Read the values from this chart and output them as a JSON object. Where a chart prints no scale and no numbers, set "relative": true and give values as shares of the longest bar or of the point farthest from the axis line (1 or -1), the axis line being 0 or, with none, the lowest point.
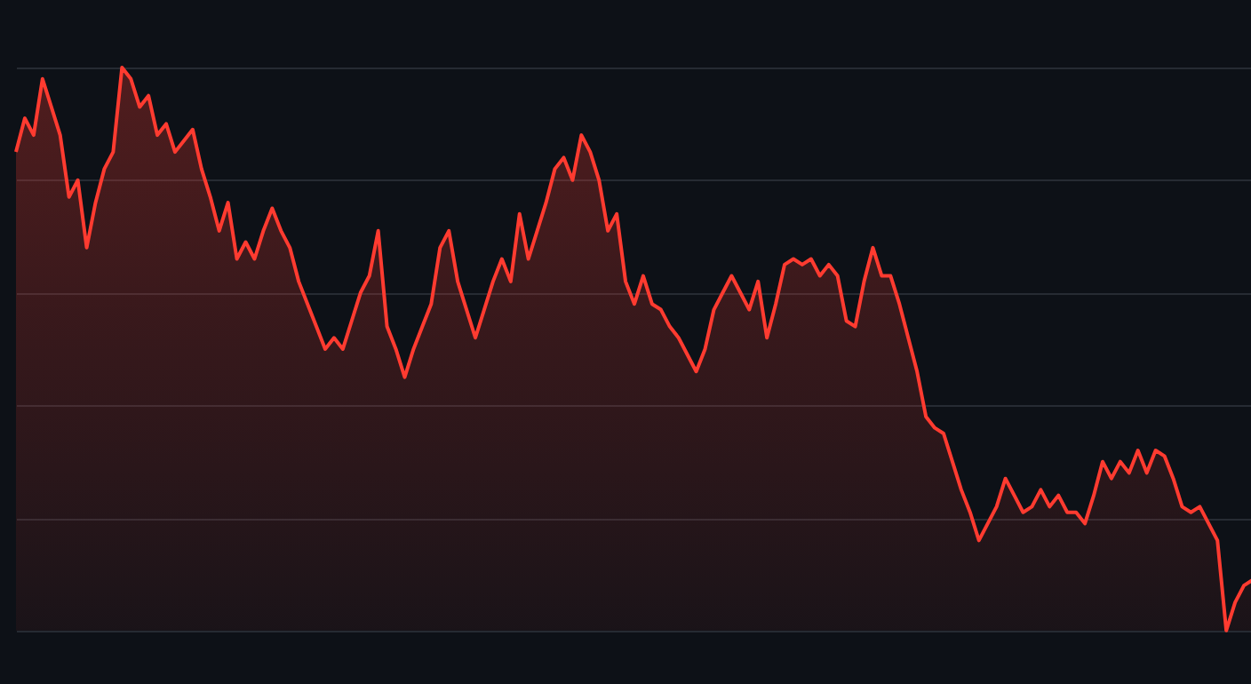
{
  "chart_data": {
    "type": "area",
    "relative": true,
    "grid": "y",
    "categories": [
      null,
      null,
      null,
      null,
      null,
      null,
      null,
      null,
      null,
      null,
      null,
      null,
      null,
      null,
      null,
      null,
      null,
      null,
      null,
      null,
      null,
      null,
      null,
      null,
      null,
      null,
      null,
      null,
      null,
      null,
      null,
      null,
      null,
      null,
      null,
      null,
      null,
      null,
      null,
      null,
      null,
      null,
      null,
      null,
      null,
      null,
      null,
      null,
      null,
      null,
      null,
      null,
      null,
      null,
      null,
      null,
      null,
      null,
      null,
      null,
      null,
      null,
      null,
      null,
      null,
      null,
      null,
      null,
      null,
      null,
      null,
      null,
      null,
      null,
      null,
      null,
      null,
      null,
      null,
      null,
      null,
      null,
      null,
      null,
      null,
      null,
      null,
      null,
      null,
      null,
      null,
      null,
      null,
      null,
      null,
      null,
      null,
      null,
      null,
      null,
      null,
      null,
      null,
      null,
      null,
      null,
      null,
      null,
      null,
      null,
      null,
      null,
      null,
      null,
      null,
      null,
      null,
      null,
      null,
      null,
      null,
      null,
      null,
      null,
      null,
      null,
      null,
      null,
      null,
      null,
      null,
      null,
      null,
      null,
      null,
      null,
      null,
      null,
      null,
      null,
      null
    ],
    "series": [
      {
        "color": "#ff3b30",
        "values": [
          0.85,
          0.91,
          0.88,
          0.98,
          0.93,
          0.88,
          0.77,
          0.8,
          0.68,
          0.76,
          0.82,
          0.85,
          1,
          0.98,
          0.93,
          0.95,
          0.88,
          0.9,
          0.85,
          0.87,
          0.89,
          0.82,
          0.77,
          0.71,
          0.76,
          0.66,
          0.69,
          0.66,
          0.71,
          0.75,
          0.71,
          0.68,
          0.62,
          0.58,
          0.54,
          0.5,
          0.52,
          0.5,
          0.55,
          0.6,
          0.63,
          0.71,
          0.54,
          0.5,
          0.45,
          0.5,
          0.54,
          0.58,
          0.68,
          0.71,
          0.62,
          0.57,
          0.52,
          0.57,
          0.62,
          0.66,
          0.62,
          0.74,
          0.66,
          0.71,
          0.76,
          0.82,
          0.84,
          0.8,
          0.88,
          0.85,
          0.8,
          0.71,
          0.74,
          0.62,
          0.58,
          0.63,
          0.58,
          0.57,
          0.54,
          0.52,
          0.49,
          0.46,
          0.5,
          0.57,
          0.6,
          0.63,
          0.6,
          0.57,
          0.62,
          0.52,
          0.58,
          0.65,
          0.66,
          0.65,
          0.66,
          0.63,
          0.65,
          0.63,
          0.55,
          0.54,
          0.62,
          0.68,
          0.63,
          0.63,
          0.58,
          0.52,
          0.46,
          0.38,
          0.36,
          0.35,
          0.3,
          0.25,
          0.21,
          0.16,
          0.19,
          0.22,
          0.27,
          0.24,
          0.21,
          0.22,
          0.25,
          0.22,
          0.24,
          0.21,
          0.21,
          0.19,
          0.24,
          0.3,
          0.27,
          0.3,
          0.28,
          0.32,
          0.28,
          0.32,
          0.31,
          0.27,
          0.22,
          0.21,
          0.22,
          0.19,
          0.16,
          0,
          0.05,
          0.08,
          0.09
        ]
      }
    ]
  }
}
